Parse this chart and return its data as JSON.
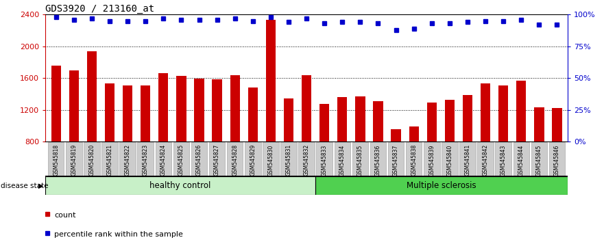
{
  "title": "GDS3920 / 213160_at",
  "categories": [
    "GSM545818",
    "GSM545819",
    "GSM545820",
    "GSM545821",
    "GSM545822",
    "GSM545823",
    "GSM545824",
    "GSM545825",
    "GSM545826",
    "GSM545827",
    "GSM545828",
    "GSM545829",
    "GSM545830",
    "GSM545831",
    "GSM545832",
    "GSM545833",
    "GSM545834",
    "GSM545835",
    "GSM545836",
    "GSM545837",
    "GSM545838",
    "GSM545839",
    "GSM545840",
    "GSM545841",
    "GSM545842",
    "GSM545843",
    "GSM545844",
    "GSM545845",
    "GSM545846"
  ],
  "bar_values": [
    1760,
    1700,
    1940,
    1530,
    1510,
    1510,
    1660,
    1630,
    1590,
    1580,
    1640,
    1480,
    2330,
    1340,
    1640,
    1270,
    1360,
    1370,
    1310,
    960,
    990,
    1290,
    1330,
    1390,
    1530,
    1510,
    1570,
    1230,
    1220
  ],
  "percentile_values": [
    98,
    96,
    97,
    95,
    95,
    95,
    97,
    96,
    96,
    96,
    97,
    95,
    98,
    94,
    97,
    93,
    94,
    94,
    93,
    88,
    89,
    93,
    93,
    94,
    95,
    95,
    96,
    92,
    92
  ],
  "ylim_left": [
    800,
    2400
  ],
  "ylim_right": [
    0,
    100
  ],
  "yticks_left": [
    800,
    1200,
    1600,
    2000,
    2400
  ],
  "yticks_right": [
    0,
    25,
    50,
    75,
    100
  ],
  "bar_color": "#CC0000",
  "dot_color": "#0000CC",
  "grid_color": "#000000",
  "background_color": "#ffffff",
  "tick_label_bg": "#cccccc",
  "healthy_control_count": 15,
  "multiple_sclerosis_count": 14,
  "healthy_label": "healthy control",
  "ms_label": "Multiple sclerosis",
  "disease_state_label": "disease state",
  "legend_count_label": "count",
  "legend_percentile_label": "percentile rank within the sample",
  "title_fontsize": 10,
  "axis_fontsize": 8,
  "bar_width": 0.55,
  "dot_size": 5,
  "dot_marker": "s",
  "healthy_color": "#c8f0c8",
  "ms_color": "#50d050"
}
